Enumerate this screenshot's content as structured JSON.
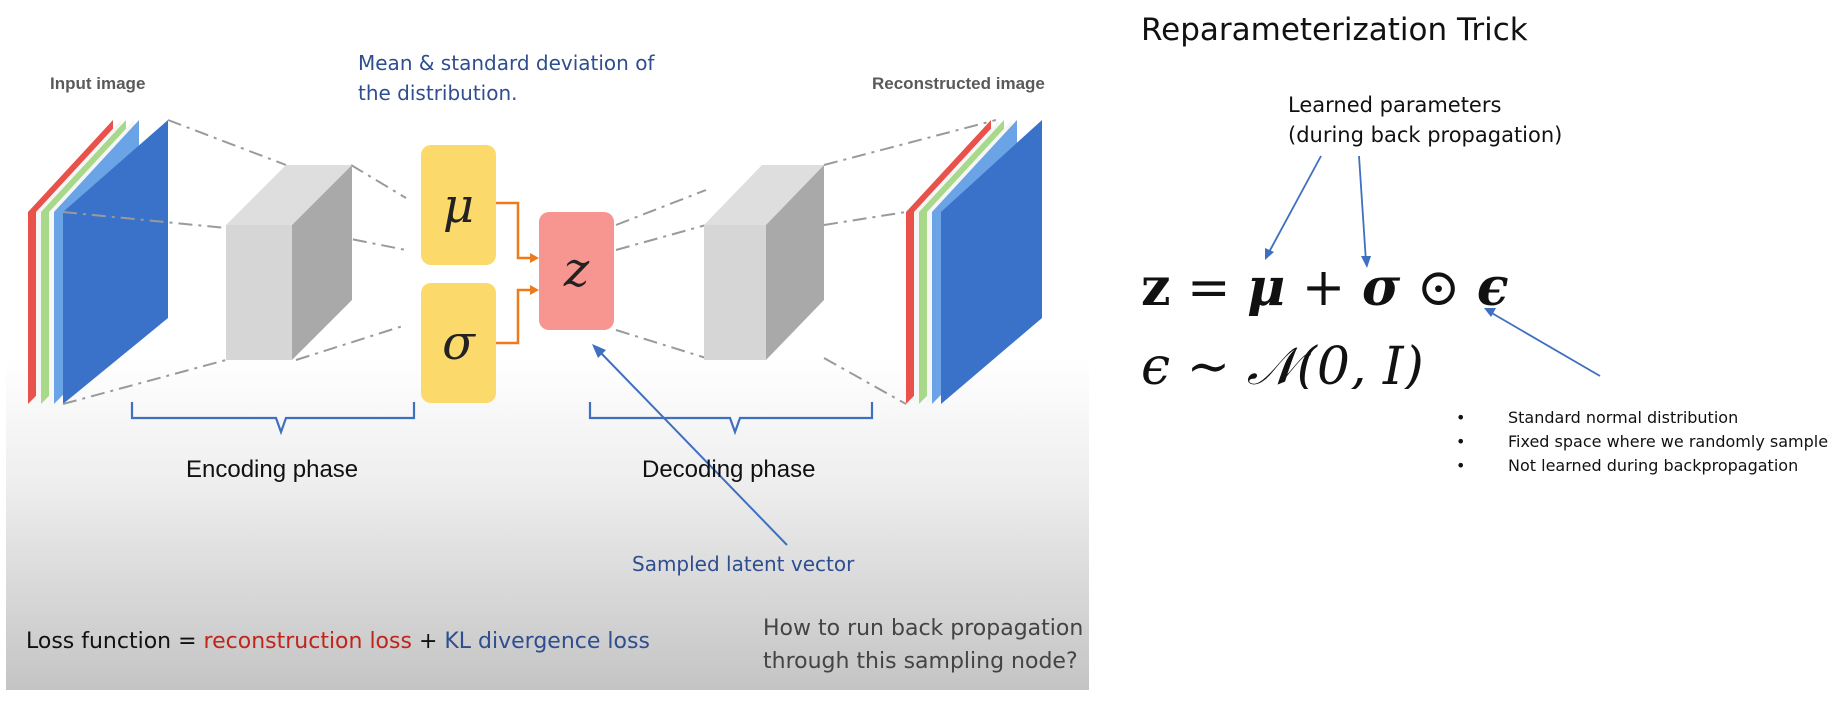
{
  "vae": {
    "input_label": "Input image",
    "output_label": "Reconstructed image",
    "mu_symbol": "μ",
    "sigma_symbol": "σ",
    "z_symbol": "z",
    "mean_note_line1": "Mean & standard deviation of",
    "mean_note_line2": "the distribution.",
    "encoding_label": "Encoding phase",
    "decoding_label": "Decoding phase",
    "sampled_label": "Sampled latent vector",
    "loss_prefix": "Loss function = ",
    "loss_recon": "reconstruction loss",
    "loss_plus": " + ",
    "loss_kl": "KL divergence loss",
    "question_line1": "How to run back propagation",
    "question_line2": "through this sampling node?"
  },
  "reparam": {
    "title": "Reparameterization Trick",
    "learned_line1": "Learned parameters",
    "learned_line2": "(during back propagation)",
    "eq1_z": "z",
    "eq1_eq": " = ",
    "eq1_mu": "μ",
    "eq1_plus": " + ",
    "eq1_sigma": "σ",
    "eq1_odot": " ⊙ ",
    "eq1_eps": "ϵ",
    "eq2_text": "ϵ ∼ 𝒩(0, I)",
    "bullets": [
      "Standard normal distribution",
      "Fixed space where we randomly sample",
      "Not learned during backpropagation"
    ]
  },
  "colors": {
    "mu_sigma_box": "#fbd96b",
    "z_box": "#f79590",
    "image_blue": "#3a72c9",
    "image_red": "#e8524a",
    "image_green": "#a8d98a",
    "annotation_blue": "#2f4e8f",
    "loss_red": "#c0241b",
    "arrow_orange": "#ee7a1e",
    "brace_blue": "#3f6fc0"
  }
}
